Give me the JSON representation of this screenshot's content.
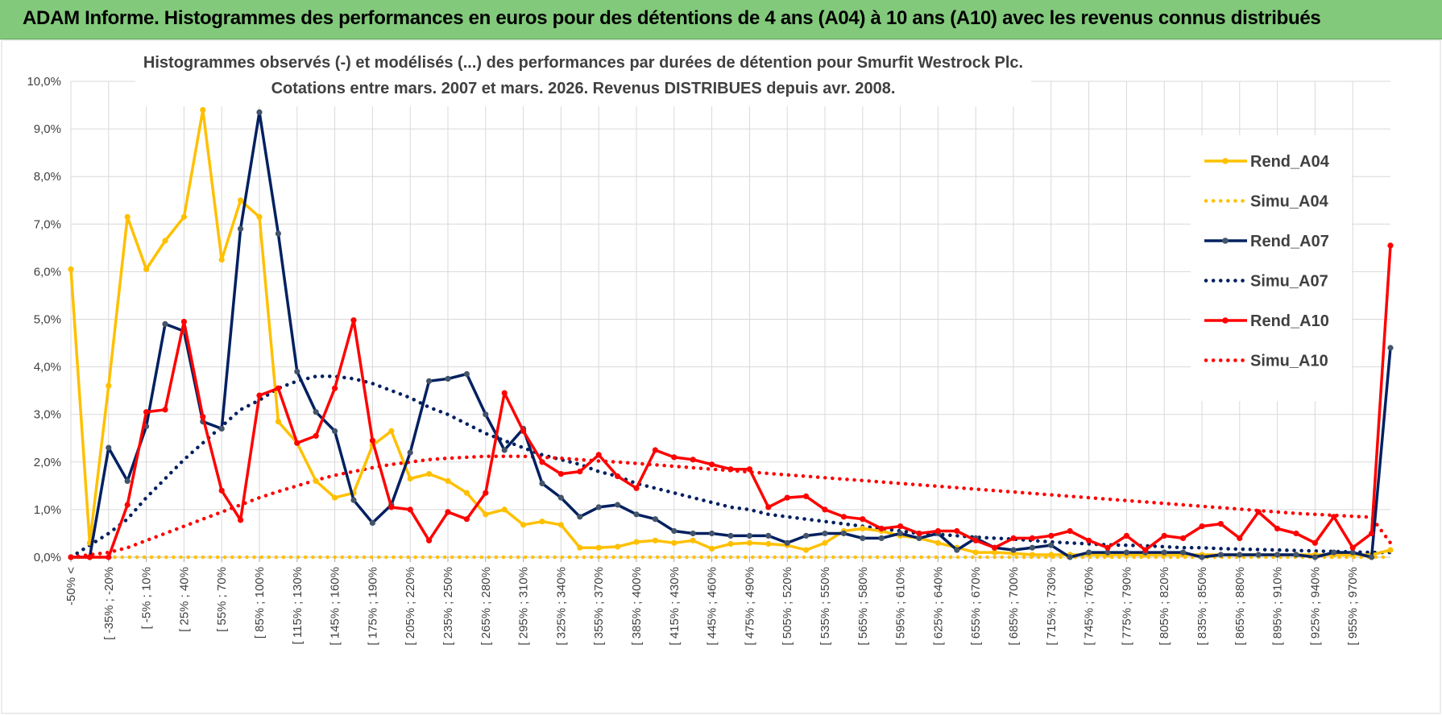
{
  "header": {
    "title": "ADAM Informe. Histogrammes des performances en euros pour des détentions de 4 ans (A04) à 10 ans (A10) avec les revenus connus distribués"
  },
  "colors": {
    "banner": "#82c97c",
    "A04": "#ffc000",
    "A07": "#002060",
    "A10": "#ff0000",
    "grid": "#d9d9d9",
    "text": "#404040"
  },
  "chart_data": {
    "type": "line",
    "title_lines": [
      "Histogrammes observés (-) et modélisés (...) des performances par durées de détention pour Smurfit  Westrock Plc.",
      "Cotations entre mars. 2007 et mars. 2026. Revenus DISTRIBUES depuis avr. 2008."
    ],
    "xlabel": "",
    "ylabel": "",
    "ylim": [
      0,
      10
    ],
    "y_ticks": [
      "0,0%",
      "1,0%",
      "2,0%",
      "3,0%",
      "4,0%",
      "5,0%",
      "6,0%",
      "7,0%",
      "8,0%",
      "9,0%",
      "10,0%"
    ],
    "x_tick_labels": [
      "-50% <",
      "[ -35% ; -20%",
      "[ -5% ; 10%",
      "[ 25% ; 40%",
      "[ 55% ; 70%",
      "[ 85% ; 100%",
      "[ 115% ; 130%",
      "[ 145% ; 160%",
      "[ 175% ; 190%",
      "[ 205% ; 220%",
      "[ 235% ; 250%",
      "[ 265% ; 280%",
      "[ 295% ; 310%",
      "[ 325% ; 340%",
      "[ 355% ; 370%",
      "[ 385% ; 400%",
      "[ 415% ; 430%",
      "[ 445% ; 460%",
      "[ 475% ; 490%",
      "[ 505% ; 520%",
      "[ 535% ; 550%",
      "[ 565% ; 580%",
      "[ 595% ; 610%",
      "[ 625% ; 640%",
      "[ 655% ; 670%",
      "[ 685% ; 700%",
      "[ 715% ; 730%",
      "[ 745% ; 760%",
      "[ 775% ; 790%",
      "[ 805% ; 820%",
      "[ 835% ; 850%",
      "[ 865% ; 880%",
      "[ 895% ; 910%",
      "[ 925% ; 940%",
      "[ 955% ; 970%"
    ],
    "category_count": 71,
    "series": [
      {
        "name": "Rend_A04",
        "style": "solid",
        "color": "#ffc000",
        "values": [
          6.05,
          0.3,
          3.6,
          7.15,
          6.05,
          6.65,
          7.15,
          9.4,
          6.25,
          7.5,
          7.15,
          2.85,
          2.4,
          1.6,
          1.25,
          1.35,
          2.35,
          2.65,
          1.65,
          1.75,
          1.6,
          1.35,
          0.9,
          1.0,
          0.68,
          0.75,
          0.68,
          0.2,
          0.2,
          0.22,
          0.32,
          0.35,
          0.3,
          0.35,
          0.18,
          0.28,
          0.3,
          0.28,
          0.25,
          0.15,
          0.3,
          0.55,
          0.6,
          0.55,
          0.45,
          0.4,
          0.3,
          0.2,
          0.1,
          0.1,
          0.08,
          0.05,
          0.05,
          0.05,
          0.05,
          0.05,
          0.05,
          0.05,
          0.05,
          0.05,
          0.05,
          0.05,
          0.05,
          0.05,
          0.05,
          0.05,
          0.05,
          0.05,
          0.05,
          0.05,
          0.15
        ]
      },
      {
        "name": "Simu_A04",
        "style": "dotted",
        "color": "#ffc000",
        "values": [
          0.0,
          0.0,
          0.0,
          0.0,
          0.0,
          0.0,
          0.0,
          0.0,
          0.0,
          0.0,
          0.0,
          0.0,
          0.0,
          0.0,
          0.0,
          0.0,
          0.0,
          0.0,
          0.0,
          0.0,
          0.0,
          0.0,
          0.0,
          0.0,
          0.0,
          0.0,
          0.0,
          0.0,
          0.0,
          0.0,
          0.0,
          0.0,
          0.0,
          0.0,
          0.0,
          0.0,
          0.0,
          0.0,
          0.0,
          0.0,
          0.0,
          0.0,
          0.0,
          0.0,
          0.0,
          0.0,
          0.0,
          0.0,
          0.0,
          0.0,
          0.0,
          0.0,
          0.0,
          0.0,
          0.0,
          0.0,
          0.0,
          0.0,
          0.0,
          0.0,
          0.0,
          0.0,
          0.0,
          0.0,
          0.0,
          0.0,
          0.0,
          0.0,
          0.0,
          0.0,
          0.0
        ]
      },
      {
        "name": "Rend_A07",
        "style": "solid",
        "color": "#002060",
        "values": [
          0.0,
          0.0,
          2.3,
          1.6,
          2.75,
          4.9,
          4.75,
          2.85,
          2.7,
          6.9,
          9.35,
          6.8,
          3.9,
          3.05,
          2.65,
          1.2,
          0.72,
          1.1,
          2.2,
          3.7,
          3.75,
          3.85,
          3.0,
          2.25,
          2.7,
          1.55,
          1.25,
          0.85,
          1.05,
          1.1,
          0.9,
          0.8,
          0.55,
          0.5,
          0.5,
          0.45,
          0.45,
          0.45,
          0.3,
          0.45,
          0.5,
          0.5,
          0.4,
          0.4,
          0.5,
          0.4,
          0.5,
          0.15,
          0.4,
          0.2,
          0.15,
          0.2,
          0.25,
          0.0,
          0.1,
          0.1,
          0.1,
          0.1,
          0.1,
          0.1,
          0.0,
          0.05,
          0.05,
          0.05,
          0.05,
          0.05,
          0.0,
          0.1,
          0.1,
          0.0,
          4.4
        ]
      },
      {
        "name": "Simu_A07",
        "style": "dotted",
        "color": "#002060",
        "values": [
          0.0,
          0.25,
          0.5,
          0.8,
          1.25,
          1.65,
          2.05,
          2.4,
          2.75,
          3.1,
          3.3,
          3.55,
          3.7,
          3.8,
          3.8,
          3.75,
          3.65,
          3.5,
          3.35,
          3.15,
          3.0,
          2.8,
          2.6,
          2.45,
          2.3,
          2.15,
          2.05,
          1.95,
          1.8,
          1.7,
          1.55,
          1.45,
          1.35,
          1.25,
          1.15,
          1.05,
          1.0,
          0.9,
          0.85,
          0.8,
          0.75,
          0.7,
          0.65,
          0.6,
          0.55,
          0.5,
          0.48,
          0.45,
          0.42,
          0.4,
          0.38,
          0.35,
          0.32,
          0.3,
          0.28,
          0.26,
          0.25,
          0.24,
          0.22,
          0.2,
          0.2,
          0.18,
          0.17,
          0.16,
          0.15,
          0.14,
          0.13,
          0.12,
          0.11,
          0.1,
          0.1
        ]
      },
      {
        "name": "Rend_A10",
        "style": "solid",
        "color": "#ff0000",
        "values": [
          0.0,
          0.0,
          0.0,
          1.1,
          3.05,
          3.1,
          4.95,
          2.95,
          1.4,
          0.78,
          3.4,
          3.55,
          2.4,
          2.55,
          3.55,
          4.98,
          2.45,
          1.05,
          1.0,
          0.35,
          0.95,
          0.8,
          1.35,
          3.45,
          2.65,
          2.0,
          1.75,
          1.8,
          2.15,
          1.7,
          1.45,
          2.25,
          2.1,
          2.05,
          1.95,
          1.85,
          1.85,
          1.05,
          1.25,
          1.28,
          1.0,
          0.85,
          0.8,
          0.6,
          0.65,
          0.5,
          0.55,
          0.55,
          0.35,
          0.2,
          0.4,
          0.4,
          0.45,
          0.55,
          0.35,
          0.2,
          0.45,
          0.15,
          0.45,
          0.4,
          0.65,
          0.7,
          0.4,
          0.95,
          0.6,
          0.5,
          0.3,
          0.85,
          0.2,
          0.5,
          6.55
        ]
      },
      {
        "name": "Simu_A10",
        "style": "dotted",
        "color": "#ff0000",
        "values": [
          0.0,
          0.05,
          0.1,
          0.2,
          0.35,
          0.5,
          0.65,
          0.8,
          0.95,
          1.1,
          1.25,
          1.38,
          1.5,
          1.62,
          1.72,
          1.8,
          1.88,
          1.95,
          2.0,
          2.05,
          2.08,
          2.1,
          2.12,
          2.12,
          2.12,
          2.1,
          2.08,
          2.05,
          2.02,
          2.0,
          1.97,
          1.94,
          1.91,
          1.88,
          1.85,
          1.82,
          1.79,
          1.76,
          1.73,
          1.7,
          1.67,
          1.64,
          1.61,
          1.58,
          1.55,
          1.52,
          1.49,
          1.46,
          1.43,
          1.4,
          1.37,
          1.34,
          1.31,
          1.28,
          1.25,
          1.22,
          1.19,
          1.16,
          1.13,
          1.1,
          1.07,
          1.04,
          1.01,
          0.98,
          0.95,
          0.92,
          0.9,
          0.88,
          0.86,
          0.84,
          0.3
        ]
      }
    ],
    "legend": [
      "Rend_A04",
      "Simu_A04",
      "Rend_A07",
      "Simu_A07",
      "Rend_A10",
      "Simu_A10"
    ],
    "legend_position": "right"
  }
}
